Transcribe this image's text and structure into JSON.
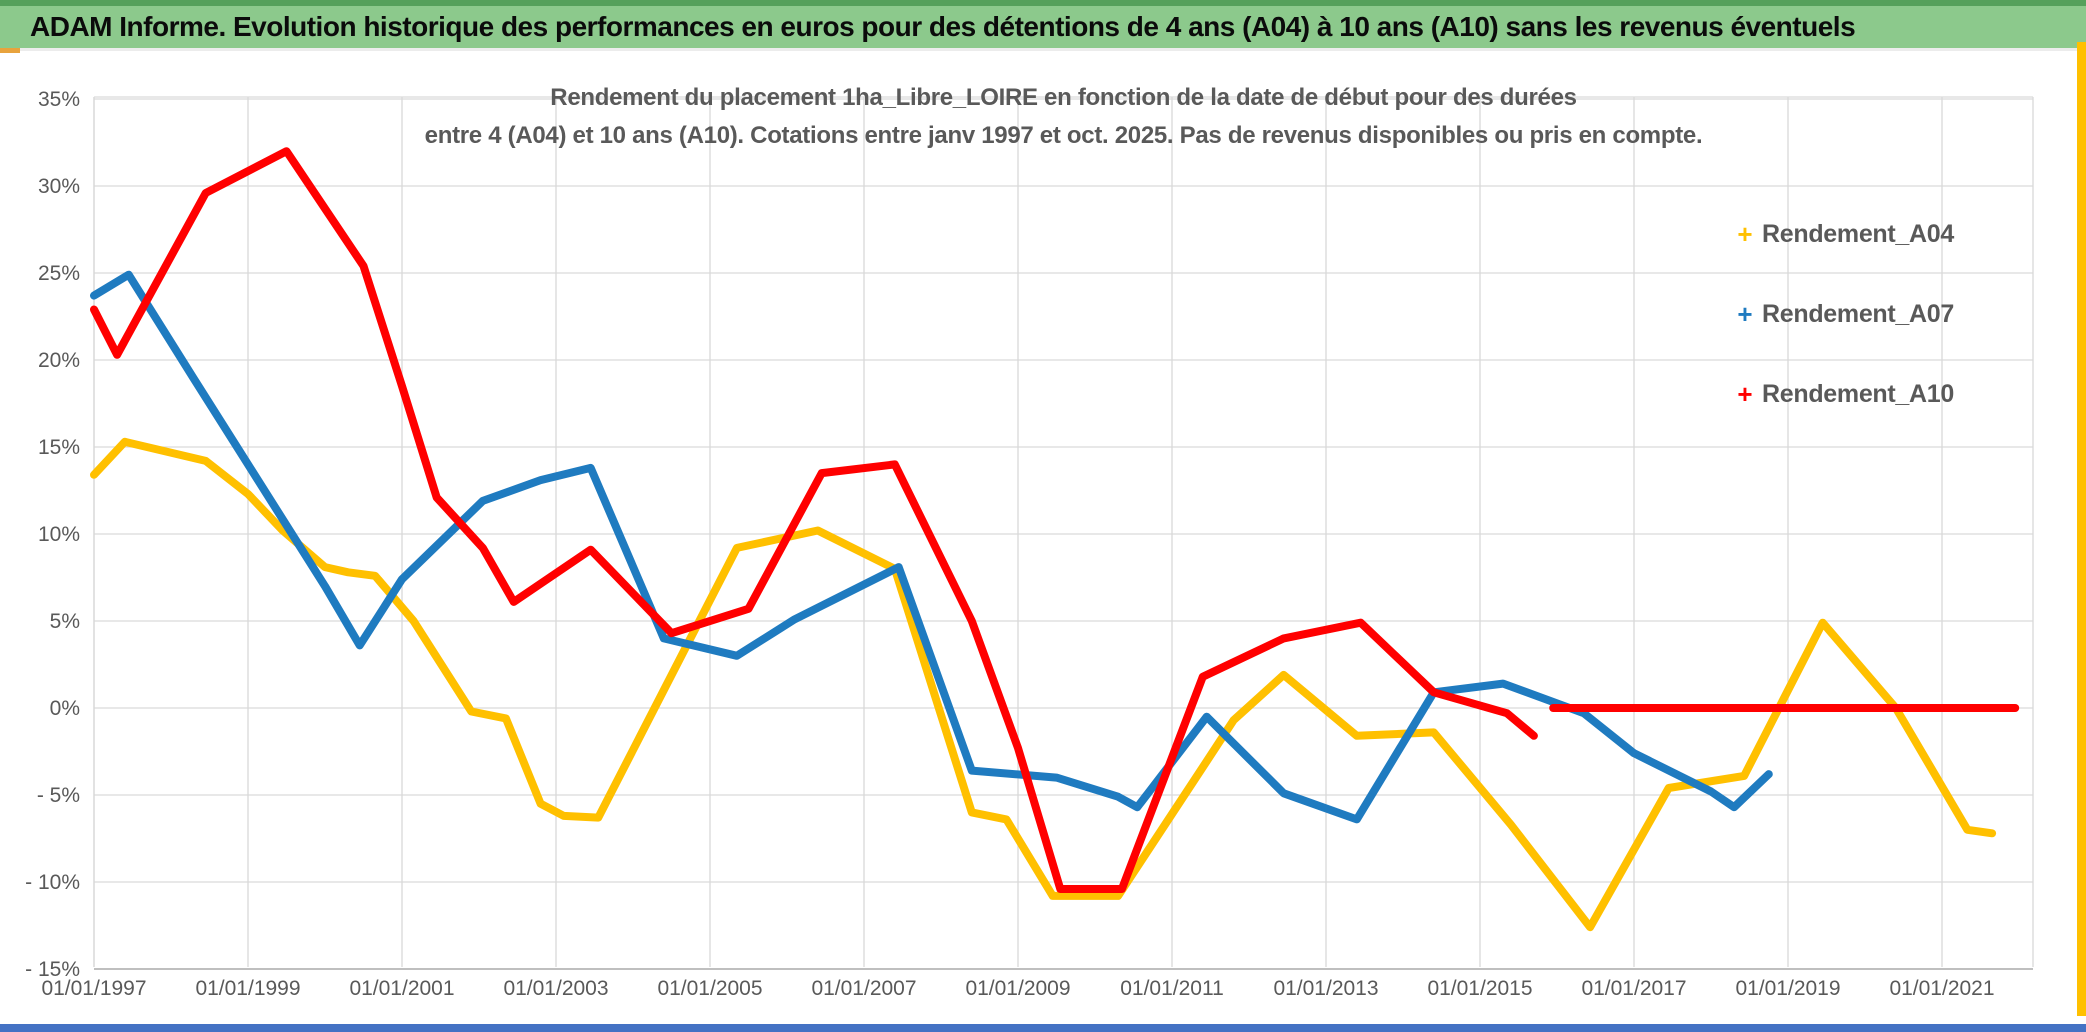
{
  "header": {
    "title": "ADAM Informe. Evolution historique des performances en euros pour des détentions de 4 ans (A04) à 10 ans (A10) sans les revenus éventuels"
  },
  "chart_data": {
    "type": "line",
    "title_line1": "Rendement du placement 1ha_Libre_LOIRE en fonction de la date de début pour des durées",
    "title_line2": "entre 4 (A04) et 10 ans (A10). Cotations entre janv 1997 et oct. 2025. Pas de revenus disponibles ou pris en compte.",
    "grid": true,
    "legend_position": "right",
    "legend_marker": "+",
    "x_axis": {
      "unit": "date de début",
      "range_years": [
        1997.0,
        2022.2
      ],
      "ticks": [
        {
          "year": 1997,
          "label": "01/01/1997"
        },
        {
          "year": 1999,
          "label": "01/01/1999"
        },
        {
          "year": 2001,
          "label": "01/01/2001"
        },
        {
          "year": 2003,
          "label": "01/01/2003"
        },
        {
          "year": 2005,
          "label": "01/01/2005"
        },
        {
          "year": 2007,
          "label": "01/01/2007"
        },
        {
          "year": 2009,
          "label": "01/01/2009"
        },
        {
          "year": 2011,
          "label": "01/01/2011"
        },
        {
          "year": 2013,
          "label": "01/01/2013"
        },
        {
          "year": 2015,
          "label": "01/01/2015"
        },
        {
          "year": 2017,
          "label": "01/01/2017"
        },
        {
          "year": 2019,
          "label": "01/01/2019"
        },
        {
          "year": 2021,
          "label": "01/01/2021"
        }
      ]
    },
    "y_axis": {
      "unit": "%",
      "min": -15,
      "max": 35,
      "step": 5,
      "ticks": [
        {
          "value": 35,
          "label": "35%"
        },
        {
          "value": 30,
          "label": "30%"
        },
        {
          "value": 25,
          "label": "25%"
        },
        {
          "value": 20,
          "label": "20%"
        },
        {
          "value": 15,
          "label": "15%"
        },
        {
          "value": 10,
          "label": "10%"
        },
        {
          "value": 5,
          "label": "5%"
        },
        {
          "value": 0,
          "label": "0%"
        },
        {
          "value": -5,
          "label": "- 5%"
        },
        {
          "value": -10,
          "label": "- 10%"
        },
        {
          "value": -15,
          "label": "- 15%"
        }
      ]
    },
    "series": [
      {
        "name": "Rendement_A04",
        "color": "#FFC000",
        "segments": [
          [
            [
              1997.0,
              13.4
            ],
            [
              1997.4,
              15.3
            ],
            [
              1998.45,
              14.2
            ],
            [
              1999.0,
              12.3
            ],
            [
              1999.45,
              10.2
            ],
            [
              2000.0,
              8.1
            ],
            [
              2000.3,
              7.8
            ],
            [
              2000.65,
              7.6
            ],
            [
              2001.15,
              5.0
            ],
            [
              2001.9,
              -0.2
            ],
            [
              2002.35,
              -0.6
            ],
            [
              2002.8,
              -5.5
            ],
            [
              2003.1,
              -6.2
            ],
            [
              2003.55,
              -6.3
            ],
            [
              2005.35,
              9.2
            ],
            [
              2006.4,
              10.2
            ],
            [
              2007.4,
              8.0
            ],
            [
              2008.4,
              -6.0
            ],
            [
              2008.85,
              -6.4
            ],
            [
              2009.45,
              -10.8
            ],
            [
              2010.3,
              -10.8
            ],
            [
              2011.4,
              -3.4
            ],
            [
              2011.8,
              -0.7
            ],
            [
              2012.45,
              1.9
            ],
            [
              2013.4,
              -1.6
            ],
            [
              2014.4,
              -1.4
            ],
            [
              2015.4,
              -6.7
            ],
            [
              2016.43,
              -12.6
            ],
            [
              2017.45,
              -4.6
            ],
            [
              2018.43,
              -3.9
            ],
            [
              2019.45,
              4.9
            ],
            [
              2020.4,
              0.0
            ],
            [
              2021.33,
              -7.0
            ],
            [
              2021.65,
              -7.2
            ]
          ]
        ]
      },
      {
        "name": "Rendement_A07",
        "color": "#1F7BC0",
        "segments": [
          [
            [
              1997.0,
              23.7
            ],
            [
              1997.45,
              24.9
            ],
            [
              1998.3,
              18.9
            ],
            [
              1999.0,
              14.0
            ],
            [
              2000.0,
              7.0
            ],
            [
              2000.45,
              3.6
            ],
            [
              2001.0,
              7.4
            ],
            [
              2002.05,
              11.9
            ],
            [
              2002.8,
              13.1
            ],
            [
              2003.45,
              13.8
            ],
            [
              2004.4,
              4.0
            ],
            [
              2005.35,
              3.0
            ],
            [
              2006.1,
              5.1
            ],
            [
              2007.45,
              8.1
            ],
            [
              2008.4,
              -3.6
            ],
            [
              2009.5,
              -4.0
            ],
            [
              2010.3,
              -5.1
            ],
            [
              2010.55,
              -5.7
            ],
            [
              2011.45,
              -0.5
            ],
            [
              2012.45,
              -4.9
            ],
            [
              2013.4,
              -6.4
            ],
            [
              2014.4,
              0.9
            ],
            [
              2015.3,
              1.4
            ],
            [
              2016.35,
              -0.3
            ],
            [
              2017.0,
              -2.6
            ],
            [
              2018.0,
              -4.8
            ],
            [
              2018.3,
              -5.7
            ],
            [
              2018.75,
              -3.8
            ]
          ]
        ]
      },
      {
        "name": "Rendement_A10",
        "color": "#FF0000",
        "segments": [
          [
            [
              1997.0,
              22.9
            ],
            [
              1997.3,
              20.3
            ],
            [
              1998.45,
              29.6
            ],
            [
              1999.5,
              32.0
            ],
            [
              2000.5,
              25.4
            ],
            [
              2001.0,
              18.5
            ],
            [
              2001.45,
              12.1
            ],
            [
              2002.05,
              9.2
            ],
            [
              2002.45,
              6.1
            ],
            [
              2003.45,
              9.1
            ],
            [
              2004.5,
              4.3
            ],
            [
              2005.5,
              5.7
            ],
            [
              2006.45,
              13.5
            ],
            [
              2007.4,
              14.0
            ],
            [
              2008.4,
              5.0
            ],
            [
              2009.0,
              -2.3
            ],
            [
              2009.55,
              -10.4
            ],
            [
              2010.35,
              -10.4
            ],
            [
              2011.4,
              1.8
            ],
            [
              2012.45,
              4.0
            ],
            [
              2013.45,
              4.9
            ],
            [
              2014.4,
              0.9
            ],
            [
              2015.35,
              -0.3
            ],
            [
              2015.7,
              -1.6
            ]
          ],
          [
            [
              2015.95,
              0.0
            ],
            [
              2021.95,
              0.0
            ]
          ]
        ]
      }
    ]
  },
  "colors": {
    "header_green": "#8CC98C",
    "top_strip_green": "#55A05B",
    "right_bar_gold": "#FFC000",
    "bottom_bar_blue": "#4472C4",
    "gridline": "#D9D9D9",
    "axis_line": "#BFBFBF",
    "axis_text": "#595959",
    "series_a04": "#FFC000",
    "series_a07": "#1F7BC0",
    "series_a10": "#FF0000"
  }
}
